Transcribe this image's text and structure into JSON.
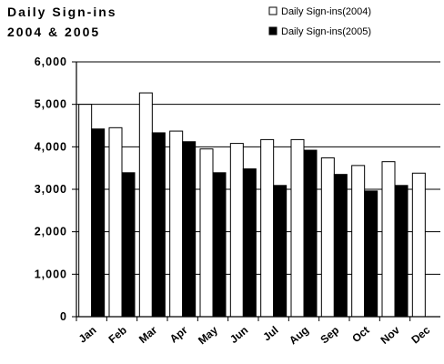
{
  "chart_data": {
    "type": "bar",
    "title_lines": [
      "Daily Sign-ins",
      "2004 & 2005"
    ],
    "categories": [
      "Jan",
      "Feb",
      "Mar",
      "Apr",
      "May",
      "Jun",
      "Jul",
      "Aug",
      "Sep",
      "Oct",
      "Nov",
      "Dec"
    ],
    "series": [
      {
        "name": "Daily Sign-ins(2004)",
        "color": "#ffffff",
        "values": [
          5000,
          4450,
          5270,
          4370,
          3950,
          4080,
          4170,
          4170,
          3740,
          3560,
          3650,
          3380
        ]
      },
      {
        "name": "Daily Sign-ins(2005)",
        "color": "#000000",
        "values": [
          4420,
          3390,
          4330,
          4120,
          3390,
          3480,
          3090,
          3920,
          3350,
          2960,
          3090,
          null
        ]
      }
    ],
    "y_tick_labels": [
      "0",
      "1,000",
      "2,000",
      "3,000",
      "4,000",
      "5,000",
      "6,000"
    ],
    "ylim": [
      0,
      6000
    ],
    "grid": true,
    "legend_position": "top-right"
  }
}
